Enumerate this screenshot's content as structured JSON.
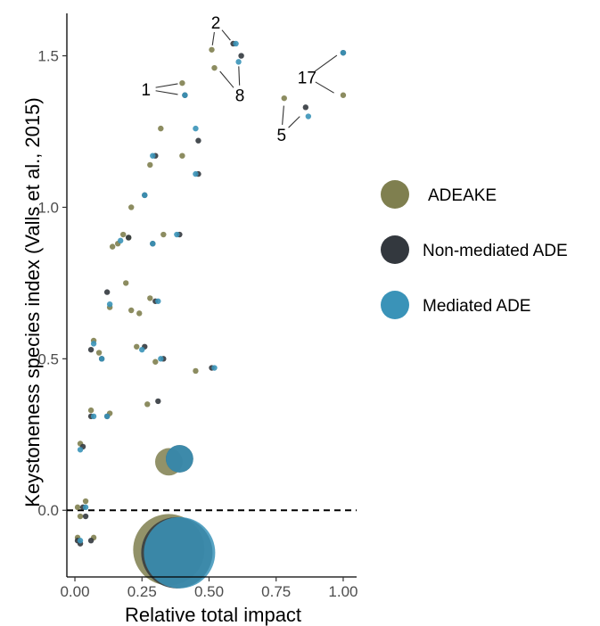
{
  "chart_data": {
    "type": "scatter",
    "xlabel": "Relative total impact",
    "ylabel": "Keystoneness species index (Valls et al., 2015)",
    "xlim": [
      -0.03,
      1.05
    ],
    "ylim": [
      -0.22,
      1.64
    ],
    "x_ticks": [
      {
        "value": 0,
        "label": "0.00"
      },
      {
        "value": 0.25,
        "label": "0.25"
      },
      {
        "value": 0.5,
        "label": "0.50"
      },
      {
        "value": 0.75,
        "label": "0.75"
      },
      {
        "value": 1,
        "label": "1.00"
      }
    ],
    "y_ticks": [
      {
        "value": 0,
        "label": "0.0"
      },
      {
        "value": 0.5,
        "label": "0.5"
      },
      {
        "value": 1,
        "label": "1.0"
      },
      {
        "value": 1.5,
        "label": "1.5"
      }
    ],
    "reference_line_y": 0,
    "grid": false,
    "legend_position": "right",
    "series": [
      {
        "name": "ADEAKE",
        "color": "#7f7f4f",
        "points": [
          [
            0.4,
            1.41
          ],
          [
            0.51,
            1.52
          ],
          [
            0.52,
            1.46
          ],
          [
            1.0,
            1.37
          ],
          [
            0.78,
            1.36
          ],
          [
            0.32,
            1.26
          ],
          [
            0.28,
            1.14
          ],
          [
            0.4,
            1.17
          ],
          [
            0.21,
            1.0
          ],
          [
            0.18,
            0.91
          ],
          [
            0.2,
            0.9
          ],
          [
            0.33,
            0.91
          ],
          [
            0.16,
            0.88
          ],
          [
            0.14,
            0.87
          ],
          [
            0.19,
            0.75
          ],
          [
            0.28,
            0.7
          ],
          [
            0.13,
            0.67
          ],
          [
            0.21,
            0.66
          ],
          [
            0.24,
            0.65
          ],
          [
            0.07,
            0.56
          ],
          [
            0.09,
            0.52
          ],
          [
            0.23,
            0.54
          ],
          [
            0.3,
            0.49
          ],
          [
            0.45,
            0.46
          ],
          [
            0.06,
            0.33
          ],
          [
            0.13,
            0.32
          ],
          [
            0.27,
            0.35
          ],
          [
            0.02,
            0.22
          ],
          [
            0.04,
            0.03
          ],
          [
            0.01,
            0.01
          ],
          [
            0.02,
            -0.02
          ],
          [
            0.01,
            -0.09
          ],
          [
            0.07,
            -0.09
          ],
          [
            0.35,
            0.16
          ],
          [
            0.35,
            -0.13
          ]
        ],
        "sizes": [
          1,
          1,
          1,
          1,
          1,
          1,
          1,
          1,
          1,
          1,
          1,
          1,
          1,
          1,
          1,
          1,
          1,
          1,
          1,
          1,
          1,
          1,
          1,
          1,
          1,
          1,
          1,
          1,
          1,
          1,
          1,
          1,
          1,
          4.8,
          12.5
        ]
      },
      {
        "name": "Non-mediated ADE",
        "color": "#33383e",
        "points": [
          [
            0.41,
            1.37
          ],
          [
            0.59,
            1.54
          ],
          [
            0.62,
            1.5
          ],
          [
            1.0,
            1.51
          ],
          [
            0.86,
            1.33
          ],
          [
            0.46,
            1.22
          ],
          [
            0.3,
            1.17
          ],
          [
            0.46,
            1.11
          ],
          [
            0.26,
            1.04
          ],
          [
            0.39,
            0.91
          ],
          [
            0.29,
            0.88
          ],
          [
            0.2,
            0.9
          ],
          [
            0.12,
            0.72
          ],
          [
            0.3,
            0.69
          ],
          [
            0.26,
            0.54
          ],
          [
            0.06,
            0.53
          ],
          [
            0.1,
            0.5
          ],
          [
            0.33,
            0.5
          ],
          [
            0.51,
            0.47
          ],
          [
            0.06,
            0.31
          ],
          [
            0.12,
            0.31
          ],
          [
            0.31,
            0.36
          ],
          [
            0.03,
            0.21
          ],
          [
            0.03,
            0.01
          ],
          [
            0.04,
            -0.02
          ],
          [
            0.01,
            -0.1
          ],
          [
            0.02,
            -0.11
          ],
          [
            0.06,
            -0.1
          ],
          [
            0.39,
            0.17
          ],
          [
            0.38,
            -0.14
          ]
        ],
        "sizes": [
          1,
          1,
          1,
          1,
          1,
          1,
          1,
          1,
          1,
          1,
          1,
          1,
          1,
          1,
          1,
          1,
          1,
          1,
          1,
          1,
          1,
          1,
          1,
          1,
          1,
          1,
          1,
          1,
          4.8,
          12.5
        ]
      },
      {
        "name": "Mediated ADE",
        "color": "#3a93b8",
        "points": [
          [
            0.41,
            1.37
          ],
          [
            0.6,
            1.54
          ],
          [
            0.61,
            1.48
          ],
          [
            1.0,
            1.51
          ],
          [
            0.87,
            1.3
          ],
          [
            0.45,
            1.26
          ],
          [
            0.29,
            1.17
          ],
          [
            0.45,
            1.11
          ],
          [
            0.26,
            1.04
          ],
          [
            0.38,
            0.91
          ],
          [
            0.29,
            0.88
          ],
          [
            0.17,
            0.89
          ],
          [
            0.13,
            0.68
          ],
          [
            0.31,
            0.69
          ],
          [
            0.25,
            0.53
          ],
          [
            0.07,
            0.55
          ],
          [
            0.1,
            0.5
          ],
          [
            0.32,
            0.5
          ],
          [
            0.52,
            0.47
          ],
          [
            0.07,
            0.31
          ],
          [
            0.12,
            0.31
          ],
          [
            0.02,
            0.2
          ],
          [
            0.04,
            0.01
          ],
          [
            0.02,
            -0.1
          ],
          [
            0.39,
            0.17
          ],
          [
            0.39,
            -0.14
          ]
        ],
        "sizes": [
          1,
          1,
          1,
          1,
          1,
          1,
          1,
          1,
          1,
          1,
          1,
          1,
          1,
          1,
          1,
          1,
          1,
          1,
          1,
          1,
          1,
          1,
          1,
          1,
          4.8,
          12.5
        ]
      }
    ],
    "annotations": [
      {
        "text": "2",
        "label_x": 0.525,
        "label_y": 1.61,
        "targets": [
          [
            0.51,
            1.52
          ],
          [
            0.59,
            1.54
          ]
        ]
      },
      {
        "text": "1",
        "label_x": 0.265,
        "label_y": 1.39,
        "targets": [
          [
            0.4,
            1.41
          ],
          [
            0.4,
            1.37
          ]
        ]
      },
      {
        "text": "8",
        "label_x": 0.615,
        "label_y": 1.37,
        "targets": [
          [
            0.53,
            1.46
          ],
          [
            0.61,
            1.48
          ]
        ]
      },
      {
        "text": "17",
        "label_x": 0.865,
        "label_y": 1.43,
        "targets": [
          [
            0.99,
            1.51
          ],
          [
            0.98,
            1.37
          ]
        ]
      },
      {
        "text": "5",
        "label_x": 0.77,
        "label_y": 1.24,
        "targets": [
          [
            0.78,
            1.35
          ],
          [
            0.85,
            1.31
          ]
        ]
      }
    ]
  }
}
